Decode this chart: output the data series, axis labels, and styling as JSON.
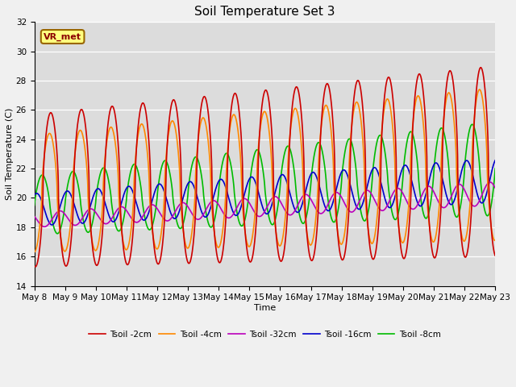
{
  "title": "Soil Temperature Set 3",
  "xlabel": "Time",
  "ylabel": "Soil Temperature (C)",
  "ylim": [
    14,
    32
  ],
  "annotation": "VR_met",
  "legend": [
    "Tsoil -2cm",
    "Tsoil -4cm",
    "Tsoil -8cm",
    "Tsoil -16cm",
    "Tsoil -32cm"
  ],
  "colors": [
    "#cc0000",
    "#ff8800",
    "#00bb00",
    "#0000cc",
    "#bb00bb"
  ],
  "x_tick_labels": [
    "May 8",
    "May 9",
    "May 10",
    "May 11",
    "May 12",
    "May 13",
    "May 14",
    "May 15",
    "May 16",
    "May 17",
    "May 18",
    "May 19",
    "May 20",
    "May 21",
    "May 22",
    "May 23"
  ],
  "line_width": 1.2,
  "grid_color": "#ffffff",
  "title_fontsize": 11,
  "label_fontsize": 8,
  "tick_fontsize": 7.5
}
